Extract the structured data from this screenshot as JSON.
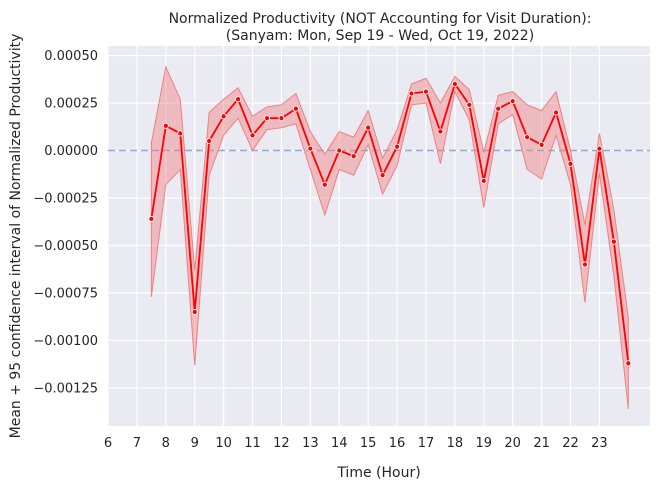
{
  "chart_data": {
    "type": "line",
    "title_line1": "Normalized Productivity (NOT Accounting for Visit Duration):",
    "title_line2": "(Sanyam: Mon, Sep 19 - Wed, Oct 19, 2022)",
    "xlabel": "Time (Hour)",
    "ylabel": "Mean + 95 confidence interval of Normalized Productivity",
    "xlim": [
      6,
      24.75
    ],
    "ylim": [
      -0.00145,
      0.00055
    ],
    "x_ticks": [
      6,
      7,
      8,
      9,
      10,
      11,
      12,
      13,
      14,
      15,
      16,
      17,
      18,
      19,
      20,
      21,
      22,
      23
    ],
    "x_tick_labels": [
      "6",
      "7",
      "8",
      "9",
      "10",
      "11",
      "12",
      "13",
      "14",
      "15",
      "16",
      "17",
      "18",
      "19",
      "20",
      "21",
      "22",
      "23"
    ],
    "y_ticks": [
      0.0005,
      0.00025,
      0.0,
      -0.00025,
      -0.0005,
      -0.00075,
      -0.001,
      -0.00125
    ],
    "y_tick_labels": [
      "0.00050",
      "0.00025",
      "0.00000",
      "−0.00025",
      "−0.00050",
      "−0.00075",
      "−0.00100",
      "−0.00125"
    ],
    "reference_line": 0,
    "grid": true,
    "colors": {
      "background": "#eaeaf2",
      "grid": "#ffffff",
      "line": "#ff0000",
      "band": "#f08080",
      "reference": "#8fa8d8"
    },
    "series": [
      {
        "x": [
          7.5,
          8.0,
          8.5,
          9.0,
          9.5,
          10.0,
          10.5,
          11.0,
          11.5,
          12.0,
          12.5,
          13.0,
          13.5,
          14.0,
          14.5,
          15.0,
          15.5,
          16.0,
          16.5,
          17.0,
          17.5,
          18.0,
          18.5,
          19.0,
          19.5,
          20.0,
          20.5,
          21.0,
          21.5,
          22.0,
          22.5,
          23.0,
          23.5,
          24.0
        ],
        "y": [
          -0.00036,
          0.00013,
          9e-05,
          -0.00085,
          5e-05,
          0.00018,
          0.00027,
          8e-05,
          0.00017,
          0.00017,
          0.00022,
          1e-05,
          -0.00018,
          0.0,
          -3e-05,
          0.00012,
          -0.00013,
          2e-05,
          0.0003,
          0.00031,
          0.0001,
          0.00035,
          0.00024,
          -0.00016,
          0.00022,
          0.00026,
          7e-05,
          3e-05,
          0.0002,
          -7e-05,
          -0.0006,
          1e-05,
          -0.00048,
          -0.00112
        ],
        "lower": [
          -0.00077,
          -0.00018,
          -0.0001,
          -0.00113,
          -0.00013,
          8e-05,
          0.00017,
          0.0,
          0.00011,
          0.00012,
          0.00014,
          -0.0001,
          -0.00034,
          -0.0001,
          -0.00013,
          3e-05,
          -0.00023,
          -8e-05,
          0.00024,
          0.00025,
          -7e-05,
          0.00031,
          0.00016,
          -0.0003,
          0.00014,
          0.00019,
          -0.0001,
          -0.00015,
          8e-05,
          -0.00018,
          -0.0008,
          -0.00012,
          -0.00066,
          -0.00136
        ],
        "upper": [
          4e-05,
          0.00044,
          0.00027,
          -0.00063,
          0.0002,
          0.00027,
          0.00033,
          0.00018,
          0.00023,
          0.00024,
          0.0003,
          0.0001,
          -2e-05,
          0.0001,
          7e-05,
          0.00021,
          -4e-05,
          0.00011,
          0.00035,
          0.00038,
          0.00025,
          0.00039,
          0.00032,
          -1e-05,
          0.00029,
          0.00031,
          0.00024,
          0.00021,
          0.00031,
          0.0,
          -0.00039,
          9e-05,
          -0.00031,
          -0.00088
        ]
      }
    ]
  }
}
